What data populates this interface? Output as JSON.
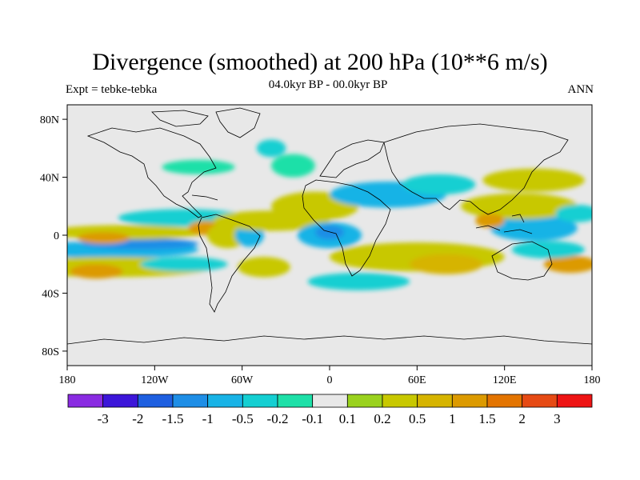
{
  "title": "Divergence (smoothed) at 200 hPa (10**6 m/s)",
  "subtitle": "04.0kyr BP - 00.0kyr BP",
  "left_label": "Expt = tebke-tebka",
  "right_label": "ANN",
  "colors": {
    "background_map": "#e8e8e8",
    "coast": "#000000"
  },
  "chart_data": {
    "type": "heatmap",
    "projection": "cylindrical-equidistant",
    "variable": "Divergence (smoothed) at 200 hPa",
    "units": "10**6 m/s",
    "lon_range": [
      -180,
      180
    ],
    "lat_range": [
      -90,
      90
    ],
    "x_ticks": [
      {
        "lon": -180,
        "label": "180"
      },
      {
        "lon": -120,
        "label": "120W"
      },
      {
        "lon": -60,
        "label": "60W"
      },
      {
        "lon": 0,
        "label": "0"
      },
      {
        "lon": 60,
        "label": "60E"
      },
      {
        "lon": 120,
        "label": "120E"
      },
      {
        "lon": 180,
        "label": "180"
      }
    ],
    "y_ticks": [
      {
        "lat": 80,
        "label": "80N"
      },
      {
        "lat": 40,
        "label": "40N"
      },
      {
        "lat": 0,
        "label": "0"
      },
      {
        "lat": -40,
        "label": "40S"
      },
      {
        "lat": -80,
        "label": "80S"
      }
    ],
    "colorbar": {
      "colors": [
        "#8a2be2",
        "#3c16d9",
        "#1e5fe0",
        "#1e8ee6",
        "#18b3e6",
        "#14cfd2",
        "#1ee0a8",
        "#e8e8e8",
        "#9ad21e",
        "#c8c800",
        "#d6b400",
        "#dc9a00",
        "#e37400",
        "#e64a14",
        "#ee1414"
      ],
      "labels": [
        "-3",
        "-2",
        "-1.5",
        "-1",
        "-0.5",
        "-0.2",
        "-0.1",
        "0.1",
        "0.2",
        "0.5",
        "1",
        "1.5",
        "2",
        "3"
      ]
    },
    "regions": [
      {
        "lon": -150,
        "lat": -10,
        "w": 60,
        "h": 6,
        "level": 4
      },
      {
        "lon": -130,
        "lat": -6,
        "w": 40,
        "h": 4,
        "level": 3
      },
      {
        "lon": -150,
        "lat": -22,
        "w": 70,
        "h": 7,
        "level": 9
      },
      {
        "lon": -160,
        "lat": -25,
        "w": 18,
        "h": 5,
        "level": 11
      },
      {
        "lon": -140,
        "lat": 2,
        "w": 55,
        "h": 5,
        "level": 9
      },
      {
        "lon": -155,
        "lat": -2,
        "w": 18,
        "h": 4,
        "level": 11
      },
      {
        "lon": -100,
        "lat": 12,
        "w": 45,
        "h": 6,
        "level": 5
      },
      {
        "lon": -85,
        "lat": 5,
        "w": 12,
        "h": 5,
        "level": 11
      },
      {
        "lon": -70,
        "lat": 0,
        "w": 14,
        "h": 9,
        "level": 9
      },
      {
        "lon": -55,
        "lat": 0,
        "w": 10,
        "h": 8,
        "level": 4
      },
      {
        "lon": -45,
        "lat": -22,
        "w": 18,
        "h": 7,
        "level": 9
      },
      {
        "lon": -100,
        "lat": -20,
        "w": 30,
        "h": 5,
        "level": 5
      },
      {
        "lon": -40,
        "lat": 10,
        "w": 40,
        "h": 7,
        "level": 9
      },
      {
        "lon": -10,
        "lat": 20,
        "w": 30,
        "h": 10,
        "level": 9
      },
      {
        "lon": -40,
        "lat": 60,
        "w": 10,
        "h": 6,
        "level": 5
      },
      {
        "lon": -25,
        "lat": 48,
        "w": 15,
        "h": 8,
        "level": 6
      },
      {
        "lon": -90,
        "lat": 47,
        "w": 25,
        "h": 5,
        "level": 6
      },
      {
        "lon": 0,
        "lat": 0,
        "w": 22,
        "h": 9,
        "level": 4
      },
      {
        "lon": 0,
        "lat": 2,
        "w": 10,
        "h": 5,
        "level": 3
      },
      {
        "lon": 40,
        "lat": 28,
        "w": 40,
        "h": 9,
        "level": 4
      },
      {
        "lon": 75,
        "lat": 35,
        "w": 25,
        "h": 7,
        "level": 5
      },
      {
        "lon": 60,
        "lat": -15,
        "w": 60,
        "h": 10,
        "level": 9
      },
      {
        "lon": 80,
        "lat": -20,
        "w": 25,
        "h": 7,
        "level": 10
      },
      {
        "lon": 140,
        "lat": 5,
        "w": 30,
        "h": 9,
        "level": 4
      },
      {
        "lon": 130,
        "lat": 20,
        "w": 40,
        "h": 9,
        "level": 9
      },
      {
        "lon": 110,
        "lat": 10,
        "w": 10,
        "h": 5,
        "level": 11
      },
      {
        "lon": 140,
        "lat": 38,
        "w": 35,
        "h": 8,
        "level": 9
      },
      {
        "lon": 165,
        "lat": -20,
        "w": 18,
        "h": 6,
        "level": 11
      },
      {
        "lon": 150,
        "lat": -10,
        "w": 25,
        "h": 6,
        "level": 5
      },
      {
        "lon": 170,
        "lat": 15,
        "w": 15,
        "h": 6,
        "level": 5
      },
      {
        "lon": 20,
        "lat": -32,
        "w": 35,
        "h": 6,
        "level": 5
      }
    ]
  }
}
